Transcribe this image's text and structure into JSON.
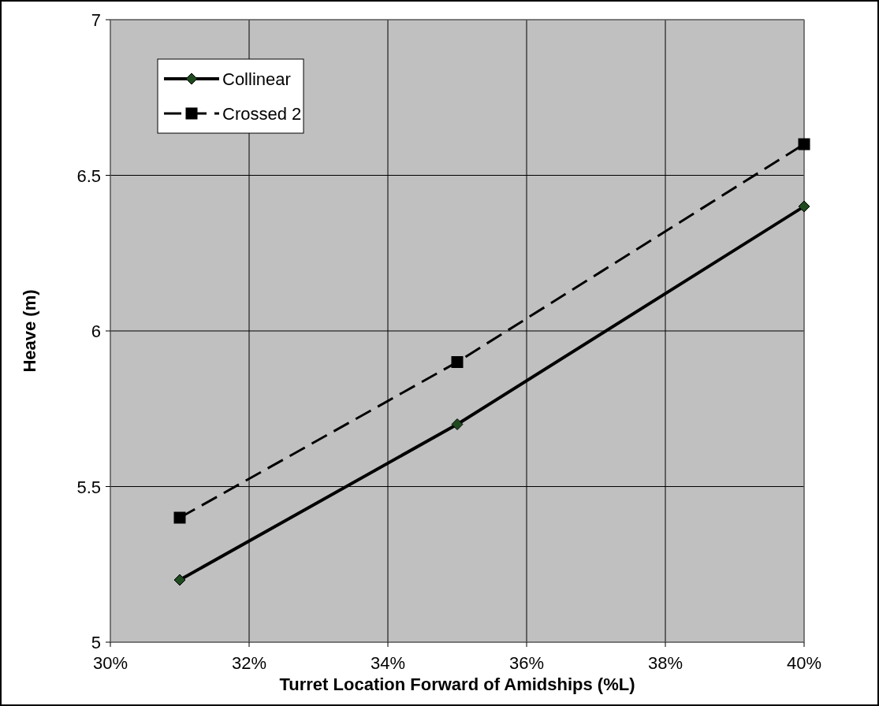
{
  "chart_data": {
    "type": "line",
    "xlabel": "Turret Location Forward of Amidships (%L)",
    "ylabel": "Heave (m)",
    "x": [
      31,
      35,
      40
    ],
    "series": [
      {
        "name": "Collinear",
        "color": "#000000",
        "values": [
          5.2,
          5.7,
          6.4
        ],
        "marker": "diamond",
        "line_style": "solid"
      },
      {
        "name": "Crossed 2",
        "color": "#000000",
        "values": [
          5.4,
          5.9,
          6.6
        ],
        "marker": "square",
        "line_style": "dashed"
      }
    ],
    "xlim": [
      30,
      40
    ],
    "xticks": [
      {
        "value": 30,
        "label": "30%"
      },
      {
        "value": 32,
        "label": "32%"
      },
      {
        "value": 34,
        "label": "34%"
      },
      {
        "value": 36,
        "label": "36%"
      },
      {
        "value": 38,
        "label": "38%"
      },
      {
        "value": 40,
        "label": "40%"
      }
    ],
    "ylim": [
      5,
      7
    ],
    "yticks": [
      5,
      5.5,
      6,
      6.5,
      7
    ],
    "grid": true,
    "legend": "top left"
  }
}
